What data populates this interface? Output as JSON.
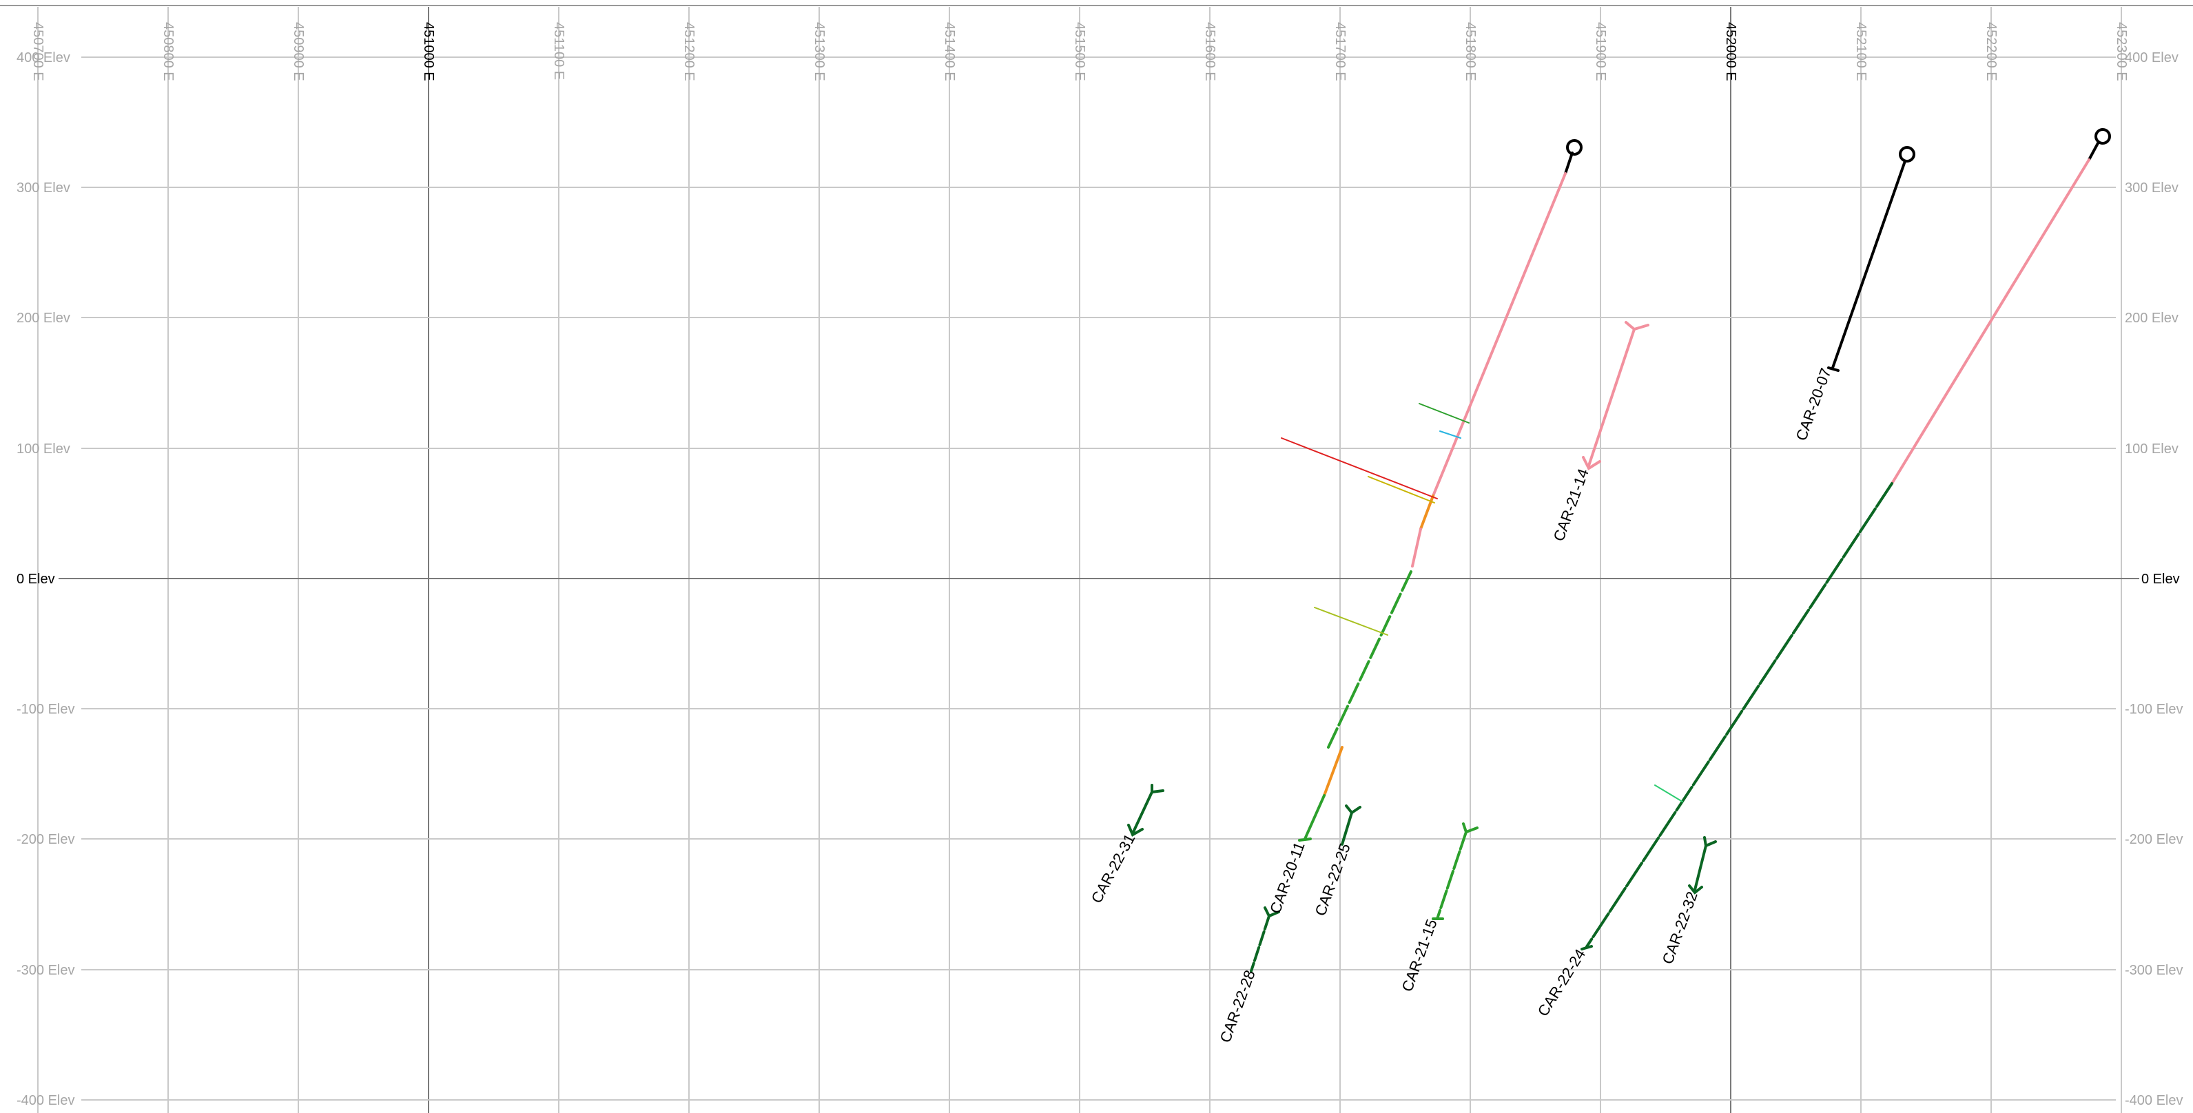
{
  "easting_labels": [
    {
      "text": "450700 E",
      "major": false
    },
    {
      "text": "450800 E",
      "major": false
    },
    {
      "text": "450900 E",
      "major": false
    },
    {
      "text": "451000 E",
      "major": true
    },
    {
      "text": "451100 E",
      "major": false
    },
    {
      "text": "451200 E",
      "major": false
    },
    {
      "text": "451300 E",
      "major": false
    },
    {
      "text": "451400 E",
      "major": false
    },
    {
      "text": "451500 E",
      "major": false
    },
    {
      "text": "451600 E",
      "major": false
    },
    {
      "text": "451700 E",
      "major": false
    },
    {
      "text": "451800 E",
      "major": false
    },
    {
      "text": "451900 E",
      "major": false
    },
    {
      "text": "452000 E",
      "major": true
    },
    {
      "text": "452100 E",
      "major": false
    },
    {
      "text": "452200 E",
      "major": false
    },
    {
      "text": "452300 E",
      "major": false
    }
  ],
  "elevation_labels": [
    {
      "text": "400 Elev",
      "major": false
    },
    {
      "text": "300 Elev",
      "major": false
    },
    {
      "text": "200 Elev",
      "major": false
    },
    {
      "text": "100 Elev",
      "major": false
    },
    {
      "text": "0 Elev",
      "major": true
    },
    {
      "text": "-100 Elev",
      "major": false
    },
    {
      "text": "-200 Elev",
      "major": false
    },
    {
      "text": "-300 Elev",
      "major": false
    },
    {
      "text": "-400 Elev",
      "major": false
    }
  ],
  "colors": {
    "collar": "#000000",
    "pink_interval": "#f2909e",
    "green_interval": "#2ca02c",
    "dark_green_interval": "#0b6623",
    "orange_interval": "#f0901e",
    "red_tick": "#e02020",
    "yellow_tick": "#c8b400",
    "cyan_tick": "#28b4e0"
  },
  "drillholes": [
    {
      "label": "CAR-20-07"
    },
    {
      "label": "CAR-20-11"
    },
    {
      "label": "CAR-21-14"
    },
    {
      "label": "CAR-21-15"
    },
    {
      "label": "CAR-22-24"
    },
    {
      "label": "CAR-22-25"
    },
    {
      "label": "CAR-22-28"
    },
    {
      "label": "CAR-22-31"
    },
    {
      "label": "CAR-22-32"
    }
  ]
}
